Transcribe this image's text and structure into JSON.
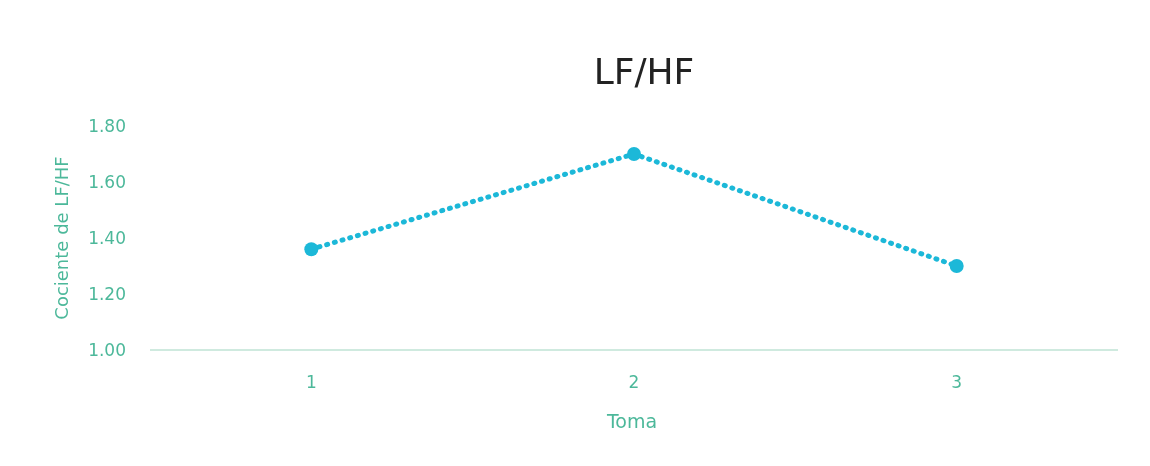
{
  "chart_data": {
    "type": "line",
    "title": "LF/HF",
    "xlabel": "Toma",
    "ylabel": "Cociente de LF/HF",
    "categories": [
      "1",
      "2",
      "3"
    ],
    "series": [
      {
        "color": "#1cb8d8",
        "values": [
          1.36,
          1.7,
          1.3
        ]
      }
    ],
    "ylim": [
      1,
      1.8
    ],
    "yticks": [
      {
        "value": 1,
        "label": "1.00"
      },
      {
        "value": 1.2,
        "label": "1.20"
      },
      {
        "value": 1.4,
        "label": "1.40"
      },
      {
        "value": 1.6,
        "label": "1.60"
      },
      {
        "value": 1.8,
        "label": "1.80"
      }
    ],
    "marker": "circle",
    "line_style": "dotted"
  }
}
